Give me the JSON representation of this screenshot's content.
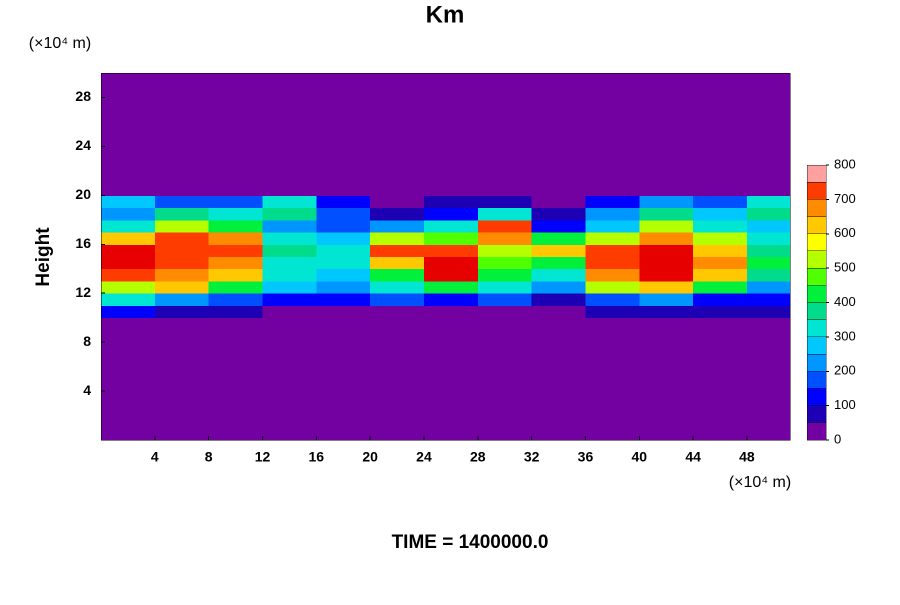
{
  "chart_data": {
    "type": "heatmap",
    "title": "Km",
    "y_label": "Height",
    "x_unit": "(×10⁴ m)",
    "y_unit": "(×10⁴ m)",
    "footer": "TIME = 1400000.0",
    "xbins": [
      0,
      4,
      8,
      12,
      16,
      20,
      24,
      28,
      32,
      36,
      40,
      44,
      48,
      51.2
    ],
    "ybins": [
      0,
      10,
      11,
      12,
      13,
      14,
      15,
      16,
      17,
      18,
      19,
      20,
      30
    ],
    "z": [
      [
        0,
        0,
        0,
        0,
        0,
        0,
        0,
        0,
        0,
        0,
        0,
        0,
        0
      ],
      [
        100,
        50,
        50,
        0,
        0,
        0,
        0,
        0,
        0,
        50,
        50,
        50,
        50
      ],
      [
        300,
        200,
        150,
        100,
        100,
        150,
        100,
        150,
        50,
        150,
        200,
        100,
        100
      ],
      [
        500,
        600,
        400,
        250,
        200,
        300,
        400,
        300,
        200,
        500,
        600,
        400,
        200
      ],
      [
        700,
        650,
        600,
        300,
        250,
        400,
        750,
        400,
        300,
        650,
        750,
        600,
        350
      ],
      [
        750,
        700,
        650,
        300,
        300,
        600,
        750,
        450,
        400,
        700,
        750,
        650,
        400
      ],
      [
        750,
        700,
        700,
        350,
        300,
        700,
        700,
        500,
        600,
        700,
        750,
        600,
        350
      ],
      [
        600,
        700,
        650,
        300,
        250,
        500,
        450,
        650,
        400,
        500,
        650,
        500,
        300
      ],
      [
        300,
        500,
        400,
        200,
        150,
        200,
        300,
        700,
        100,
        250,
        500,
        300,
        250
      ],
      [
        200,
        350,
        300,
        350,
        150,
        50,
        100,
        300,
        50,
        200,
        350,
        250,
        350
      ],
      [
        250,
        150,
        150,
        300,
        100,
        0,
        50,
        50,
        0,
        100,
        200,
        150,
        300
      ],
      [
        0,
        0,
        0,
        0,
        0,
        0,
        0,
        0,
        0,
        0,
        0,
        0,
        0
      ]
    ],
    "xlim": [
      0,
      51.2
    ],
    "ylim": [
      0,
      30
    ],
    "xticks": [
      4,
      8,
      12,
      16,
      20,
      24,
      28,
      32,
      36,
      40,
      44,
      48
    ],
    "yticks": [
      4,
      8,
      12,
      16,
      20,
      24,
      28
    ],
    "clevels": [
      0,
      50,
      100,
      150,
      200,
      250,
      300,
      350,
      400,
      450,
      500,
      550,
      600,
      650,
      700,
      750,
      800
    ],
    "colors": [
      "#7300a0",
      "#1e00b4",
      "#0000ff",
      "#0050ff",
      "#0096ff",
      "#00c8ff",
      "#00e6d2",
      "#00dc8c",
      "#00f03c",
      "#50ff00",
      "#b4ff00",
      "#ffff00",
      "#ffc800",
      "#ff8c00",
      "#ff3c00",
      "#e60000"
    ],
    "top_color": "#ffa0a0",
    "cticks": [
      0,
      100,
      200,
      300,
      400,
      500,
      600,
      700,
      800
    ]
  }
}
